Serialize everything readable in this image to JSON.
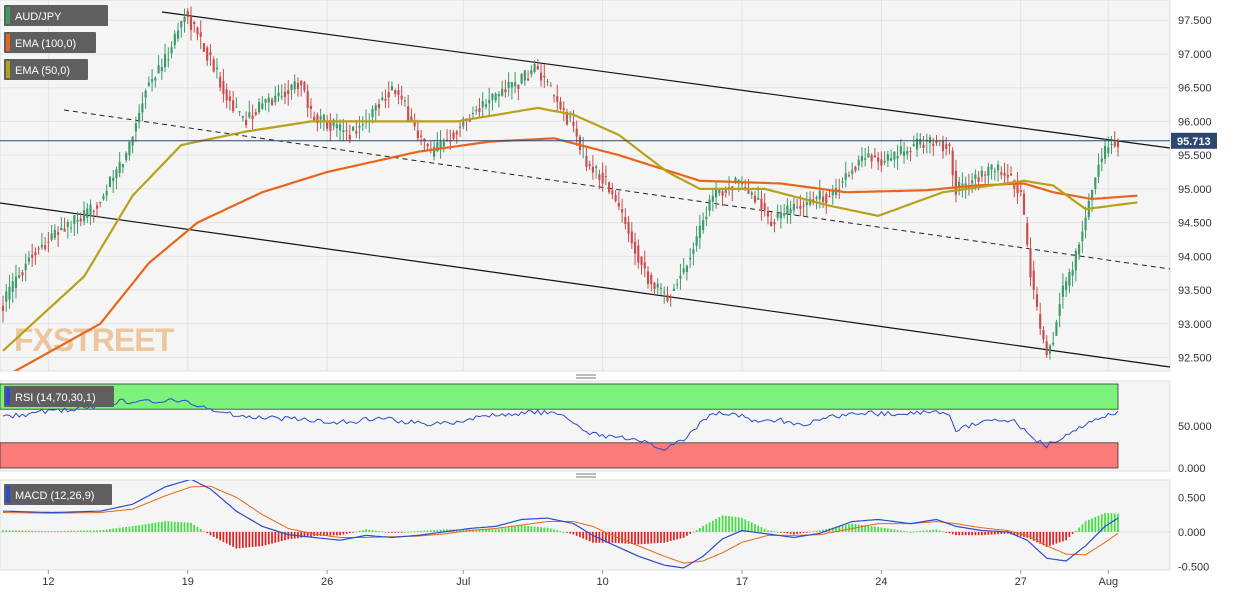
{
  "colors": {
    "bull": "#3b9a6a",
    "bear": "#cc4b4b",
    "ema100": "#e8661c",
    "ema50": "#b5a21a",
    "rsi": "#2b4ccc",
    "rsi_overbought": "#7cf27c",
    "rsi_oversold": "#fb7b7b",
    "macd": "#2b4ccc",
    "signal": "#e8661c",
    "hist_pos": "#3ee03e",
    "hist_neg": "#e02020",
    "price_tag": "#2c4770"
  },
  "instrument": "AUD/JPY",
  "indicators": {
    "ema100_label": "EMA (100,0)",
    "ema50_label": "EMA (50,0)",
    "rsi_label": "RSI (14,70,30,1)",
    "macd_label": "MACD (12,26,9)"
  },
  "watermark": "FXSTREET",
  "chart_data": [
    {
      "type": "candlestick",
      "title": "AUD/JPY",
      "x_labels": [
        "12",
        "19",
        "26",
        "Jul",
        "10",
        "17",
        "24",
        "27",
        "Aug"
      ],
      "y_ticks": [
        "92.500",
        "93.000",
        "93.500",
        "94.000",
        "94.500",
        "95.000",
        "95.500",
        "96.000",
        "96.500",
        "97.000",
        "97.500"
      ],
      "ylim": [
        92.3,
        97.8
      ],
      "last_price": "95.713",
      "grid": true,
      "series": [
        {
          "name": "EMA (100,0)",
          "anchors": [
            [
              0,
              92.2
            ],
            [
              30,
              93.0
            ],
            [
              45,
              93.9
            ],
            [
              60,
              94.5
            ],
            [
              80,
              94.95
            ],
            [
              100,
              95.25
            ],
            [
              128,
              95.55
            ],
            [
              150,
              95.7
            ],
            [
              170,
              95.75
            ],
            [
              190,
              95.5
            ],
            [
              215,
              95.12
            ],
            [
              240,
              95.08
            ],
            [
              260,
              94.95
            ],
            [
              285,
              94.98
            ],
            [
              300,
              95.05
            ],
            [
              315,
              95.08
            ],
            [
              324,
              94.95
            ],
            [
              336,
              94.85
            ],
            [
              350,
              94.9
            ]
          ]
        },
        {
          "name": "EMA (50,0)",
          "anchors": [
            [
              0,
              92.6
            ],
            [
              25,
              93.7
            ],
            [
              40,
              94.9
            ],
            [
              55,
              95.65
            ],
            [
              75,
              95.85
            ],
            [
              95,
              96.0
            ],
            [
              120,
              96.0
            ],
            [
              140,
              96.0
            ],
            [
              165,
              96.2
            ],
            [
              176,
              96.1
            ],
            [
              190,
              95.8
            ],
            [
              205,
              95.25
            ],
            [
              215,
              95.0
            ],
            [
              235,
              95.0
            ],
            [
              255,
              94.75
            ],
            [
              270,
              94.6
            ],
            [
              290,
              94.95
            ],
            [
              305,
              95.05
            ],
            [
              315,
              95.12
            ],
            [
              324,
              95.05
            ],
            [
              334,
              94.7
            ],
            [
              350,
              94.8
            ]
          ]
        }
      ],
      "anchors": [
        [
          0,
          93.3
        ],
        [
          8,
          94.0
        ],
        [
          18,
          94.4
        ],
        [
          26,
          94.6
        ],
        [
          32,
          95.0
        ],
        [
          38,
          95.5
        ],
        [
          44,
          96.5
        ],
        [
          50,
          96.9
        ],
        [
          56,
          97.6
        ],
        [
          60,
          97.3
        ],
        [
          64,
          96.9
        ],
        [
          70,
          96.3
        ],
        [
          74,
          96.0
        ],
        [
          80,
          96.25
        ],
        [
          86,
          96.4
        ],
        [
          92,
          96.6
        ],
        [
          95,
          96.1
        ],
        [
          100,
          96.0
        ],
        [
          106,
          95.8
        ],
        [
          112,
          96.0
        ],
        [
          116,
          96.3
        ],
        [
          120,
          96.5
        ],
        [
          124,
          96.2
        ],
        [
          128,
          95.8
        ],
        [
          132,
          95.5
        ],
        [
          138,
          95.8
        ],
        [
          144,
          96.1
        ],
        [
          150,
          96.3
        ],
        [
          155,
          96.5
        ],
        [
          160,
          96.6
        ],
        [
          164,
          96.8
        ],
        [
          168,
          96.5
        ],
        [
          172,
          96.2
        ],
        [
          176,
          95.9
        ],
        [
          180,
          95.4
        ],
        [
          186,
          95.1
        ],
        [
          192,
          94.5
        ],
        [
          196,
          94.0
        ],
        [
          200,
          93.6
        ],
        [
          205,
          93.4
        ],
        [
          210,
          93.8
        ],
        [
          214,
          94.3
        ],
        [
          218,
          94.8
        ],
        [
          222,
          95.0
        ],
        [
          226,
          95.1
        ],
        [
          230,
          94.9
        ],
        [
          234,
          94.8
        ],
        [
          236,
          94.5
        ],
        [
          240,
          94.6
        ],
        [
          244,
          94.7
        ],
        [
          248,
          94.8
        ],
        [
          252,
          94.9
        ],
        [
          256,
          94.9
        ],
        [
          260,
          95.2
        ],
        [
          264,
          95.4
        ],
        [
          268,
          95.5
        ],
        [
          272,
          95.4
        ],
        [
          276,
          95.5
        ],
        [
          280,
          95.6
        ],
        [
          284,
          95.7
        ],
        [
          288,
          95.7
        ],
        [
          292,
          95.6
        ],
        [
          294,
          95.0
        ],
        [
          298,
          95.1
        ],
        [
          302,
          95.2
        ],
        [
          306,
          95.3
        ],
        [
          310,
          95.2
        ],
        [
          314,
          94.9
        ],
        [
          318,
          93.4
        ],
        [
          320,
          92.9
        ],
        [
          322,
          92.6
        ],
        [
          324,
          92.8
        ],
        [
          326,
          93.4
        ],
        [
          330,
          93.8
        ],
        [
          334,
          94.6
        ],
        [
          338,
          95.4
        ],
        [
          342,
          95.7
        ],
        [
          344,
          95.71
        ]
      ]
    },
    {
      "type": "line",
      "title": "RSI (14,70,30,1)",
      "y_ticks": [
        "0.000",
        "50.000"
      ],
      "ylim": [
        0,
        100
      ],
      "overbought": 70,
      "oversold": 30,
      "anchors": [
        [
          0,
          60
        ],
        [
          12,
          67
        ],
        [
          24,
          71
        ],
        [
          36,
          79
        ],
        [
          48,
          80
        ],
        [
          56,
          80
        ],
        [
          60,
          75
        ],
        [
          66,
          68
        ],
        [
          72,
          63
        ],
        [
          80,
          60
        ],
        [
          90,
          58
        ],
        [
          100,
          55
        ],
        [
          110,
          56
        ],
        [
          116,
          61
        ],
        [
          124,
          55
        ],
        [
          132,
          53
        ],
        [
          140,
          55
        ],
        [
          148,
          62
        ],
        [
          156,
          64
        ],
        [
          164,
          67
        ],
        [
          170,
          64
        ],
        [
          176,
          56
        ],
        [
          180,
          43
        ],
        [
          186,
          38
        ],
        [
          192,
          35
        ],
        [
          198,
          30
        ],
        [
          204,
          24
        ],
        [
          210,
          32
        ],
        [
          214,
          48
        ],
        [
          218,
          63
        ],
        [
          222,
          66
        ],
        [
          228,
          62
        ],
        [
          234,
          54
        ],
        [
          240,
          57
        ],
        [
          246,
          50
        ],
        [
          252,
          58
        ],
        [
          258,
          62
        ],
        [
          264,
          66
        ],
        [
          272,
          64
        ],
        [
          280,
          66
        ],
        [
          288,
          68
        ],
        [
          292,
          63
        ],
        [
          294,
          44
        ],
        [
          298,
          50
        ],
        [
          304,
          56
        ],
        [
          312,
          55
        ],
        [
          318,
          35
        ],
        [
          322,
          27
        ],
        [
          326,
          35
        ],
        [
          332,
          48
        ],
        [
          338,
          60
        ],
        [
          344,
          65
        ]
      ]
    },
    {
      "type": "bar",
      "title": "MACD (12,26,9)",
      "y_ticks": [
        "-0.500",
        "0.000",
        "0.500"
      ],
      "ylim": [
        -0.55,
        0.75
      ],
      "series": [
        {
          "name": "MACD",
          "anchors": [
            [
              0,
              0.3
            ],
            [
              15,
              0.28
            ],
            [
              30,
              0.3
            ],
            [
              40,
              0.4
            ],
            [
              50,
              0.65
            ],
            [
              58,
              0.76
            ],
            [
              64,
              0.62
            ],
            [
              72,
              0.3
            ],
            [
              80,
              0.08
            ],
            [
              88,
              -0.04
            ],
            [
              96,
              -0.08
            ],
            [
              104,
              -0.12
            ],
            [
              112,
              -0.05
            ],
            [
              120,
              -0.08
            ],
            [
              128,
              -0.05
            ],
            [
              136,
              0.0
            ],
            [
              144,
              0.05
            ],
            [
              152,
              0.08
            ],
            [
              160,
              0.18
            ],
            [
              168,
              0.2
            ],
            [
              176,
              0.12
            ],
            [
              182,
              -0.05
            ],
            [
              188,
              -0.18
            ],
            [
              196,
              -0.35
            ],
            [
              204,
              -0.48
            ],
            [
              210,
              -0.52
            ],
            [
              216,
              -0.35
            ],
            [
              222,
              -0.1
            ],
            [
              228,
              0.02
            ],
            [
              236,
              -0.03
            ],
            [
              244,
              -0.08
            ],
            [
              252,
              -0.02
            ],
            [
              262,
              0.15
            ],
            [
              270,
              0.18
            ],
            [
              280,
              0.12
            ],
            [
              288,
              0.18
            ],
            [
              294,
              0.08
            ],
            [
              302,
              0.02
            ],
            [
              310,
              0.0
            ],
            [
              316,
              -0.12
            ],
            [
              322,
              -0.38
            ],
            [
              328,
              -0.42
            ],
            [
              334,
              -0.2
            ],
            [
              340,
              0.08
            ],
            [
              344,
              0.2
            ]
          ]
        },
        {
          "name": "Signal",
          "anchors": [
            [
              0,
              0.28
            ],
            [
              15,
              0.27
            ],
            [
              30,
              0.28
            ],
            [
              40,
              0.33
            ],
            [
              50,
              0.52
            ],
            [
              58,
              0.65
            ],
            [
              64,
              0.66
            ],
            [
              72,
              0.5
            ],
            [
              80,
              0.25
            ],
            [
              88,
              0.05
            ],
            [
              96,
              -0.03
            ],
            [
              104,
              -0.08
            ],
            [
              112,
              -0.08
            ],
            [
              120,
              -0.07
            ],
            [
              128,
              -0.06
            ],
            [
              136,
              -0.03
            ],
            [
              144,
              0.02
            ],
            [
              152,
              0.05
            ],
            [
              160,
              0.1
            ],
            [
              168,
              0.15
            ],
            [
              176,
              0.15
            ],
            [
              182,
              0.08
            ],
            [
              188,
              -0.05
            ],
            [
              196,
              -0.2
            ],
            [
              204,
              -0.35
            ],
            [
              210,
              -0.45
            ],
            [
              216,
              -0.42
            ],
            [
              222,
              -0.3
            ],
            [
              228,
              -0.15
            ],
            [
              236,
              -0.05
            ],
            [
              244,
              -0.05
            ],
            [
              252,
              -0.04
            ],
            [
              262,
              0.05
            ],
            [
              270,
              0.12
            ],
            [
              280,
              0.12
            ],
            [
              288,
              0.15
            ],
            [
              294,
              0.12
            ],
            [
              302,
              0.06
            ],
            [
              310,
              0.02
            ],
            [
              316,
              -0.05
            ],
            [
              322,
              -0.2
            ],
            [
              328,
              -0.32
            ],
            [
              334,
              -0.33
            ],
            [
              340,
              -0.15
            ],
            [
              344,
              -0.02
            ]
          ]
        }
      ]
    }
  ]
}
